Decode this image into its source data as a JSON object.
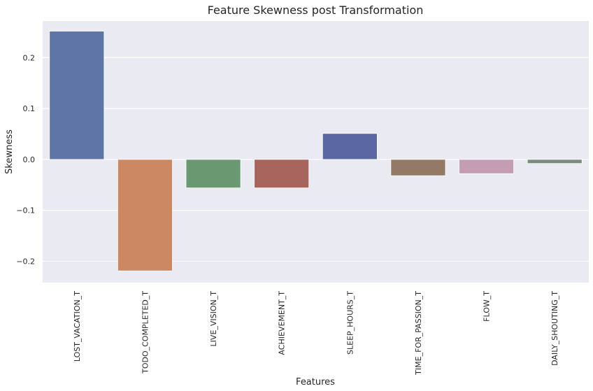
{
  "chart_data": {
    "type": "bar",
    "title": "Feature Skewness post Transformation",
    "xlabel": "Features",
    "ylabel": "Skewness",
    "categories": [
      "LOST_VACATION_T",
      "TODO_COMPLETED_T",
      "LIVE_VISION_T",
      "ACHIEVEMENT_T",
      "SLEEP_HOURS_T",
      "TIME_FOR_PASSION_T",
      "FLOW_T",
      "DAILY_SHOUTING_T"
    ],
    "values": [
      0.252,
      -0.219,
      -0.056,
      -0.056,
      0.051,
      -0.032,
      -0.028,
      -0.008
    ],
    "colors": [
      "#5f75a8",
      "#cc8862",
      "#6a9871",
      "#a8655e",
      "#5a67a3",
      "#947a66",
      "#c49db5",
      "#7c8c7c"
    ],
    "ylim": [
      -0.242,
      0.272
    ],
    "yticks": [
      -0.2,
      -0.1,
      0.0,
      0.1,
      0.2
    ],
    "ytick_labels": [
      "−0.2",
      "−0.1",
      "0.0",
      "0.1",
      "0.2"
    ],
    "grid": true,
    "background": "#eaeaf2",
    "legend": "none"
  }
}
